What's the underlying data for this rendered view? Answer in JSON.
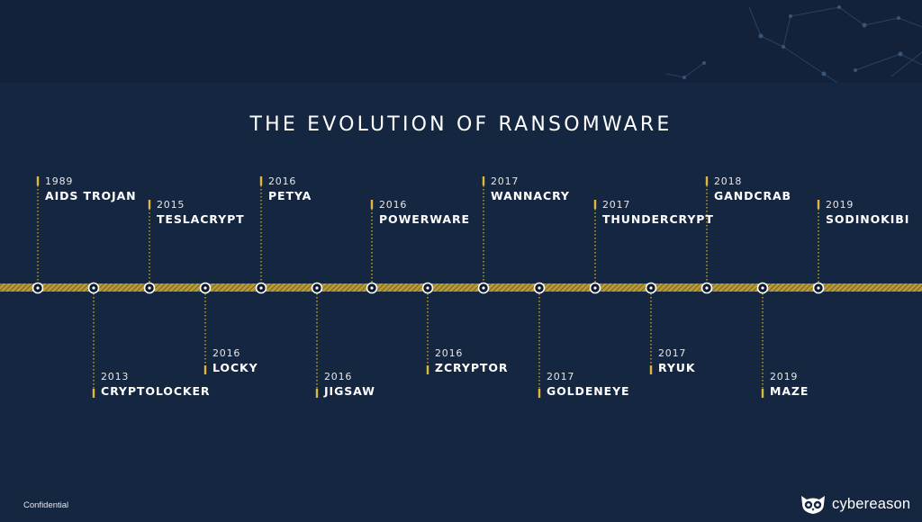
{
  "title": "THE EVOLUTION OF RANSOMWARE",
  "events": [
    {
      "year": "1989",
      "name": "AIDS TROJAN",
      "side": "above",
      "level": "high"
    },
    {
      "year": "2013",
      "name": "CRYPTOLOCKER",
      "side": "below",
      "level": "low"
    },
    {
      "year": "2015",
      "name": "TESLACRYPT",
      "side": "above",
      "level": "low"
    },
    {
      "year": "2016",
      "name": "LOCKY",
      "side": "below",
      "level": "high"
    },
    {
      "year": "2016",
      "name": "PETYA",
      "side": "above",
      "level": "high"
    },
    {
      "year": "2016",
      "name": "JIGSAW",
      "side": "below",
      "level": "low"
    },
    {
      "year": "2016",
      "name": "POWERWARE",
      "side": "above",
      "level": "low"
    },
    {
      "year": "2016",
      "name": "ZCRYPTOR",
      "side": "below",
      "level": "high"
    },
    {
      "year": "2017",
      "name": "WANNACRY",
      "side": "above",
      "level": "high"
    },
    {
      "year": "2017",
      "name": "GOLDENEYE",
      "side": "below",
      "level": "low"
    },
    {
      "year": "2017",
      "name": "THUNDERCRYPT",
      "side": "above",
      "level": "low"
    },
    {
      "year": "2017",
      "name": "RYUK",
      "side": "below",
      "level": "high"
    },
    {
      "year": "2018",
      "name": "GANDCRAB",
      "side": "above",
      "level": "high"
    },
    {
      "year": "2019",
      "name": "MAZE",
      "side": "below",
      "level": "low"
    },
    {
      "year": "2019",
      "name": "SODINOKIBI",
      "side": "above",
      "level": "low"
    }
  ],
  "footer": {
    "confidential": "Confidential",
    "brand": "cybereason",
    "brand_logo_icon": "owl-logo-icon"
  },
  "colors": {
    "background": "#152641",
    "accent": "#e0b93a",
    "text": "#ffffff"
  }
}
